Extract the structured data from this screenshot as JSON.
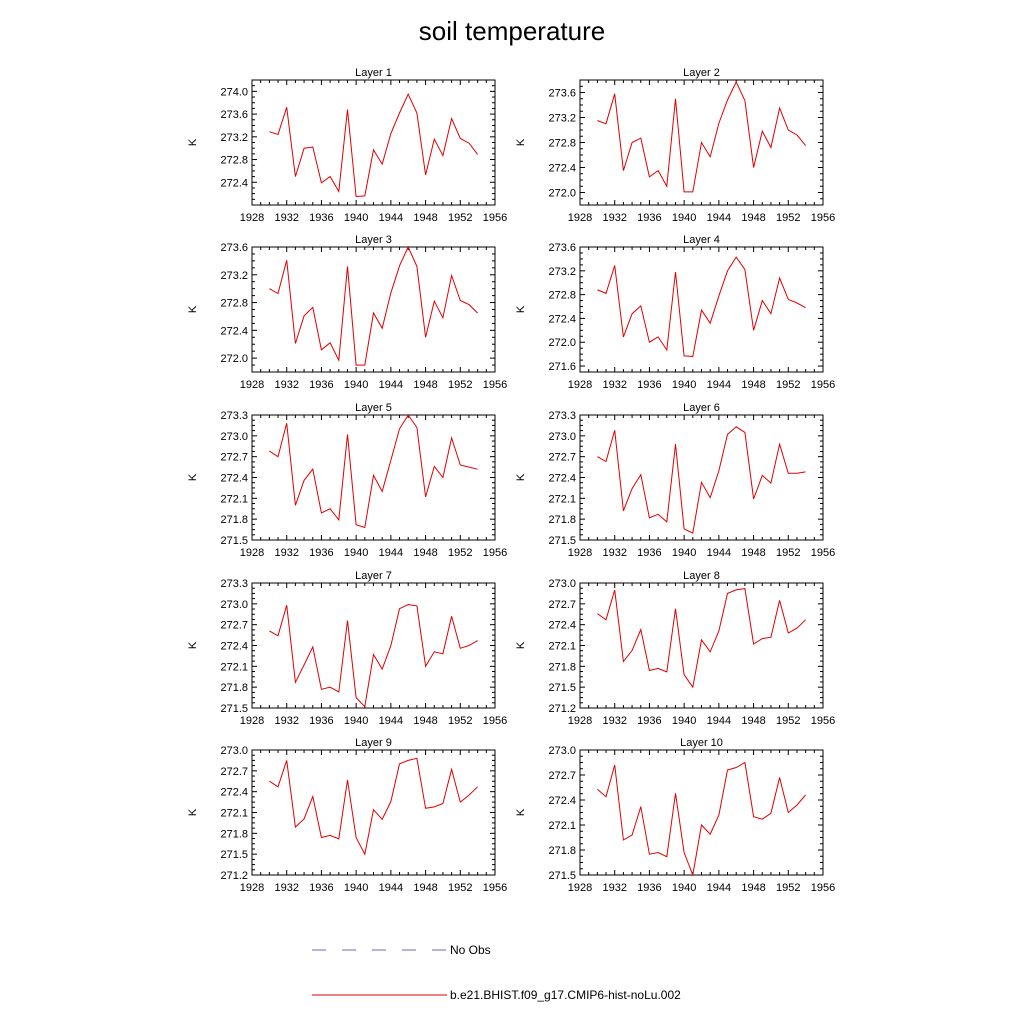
{
  "title": "soil temperature",
  "legend": [
    {
      "name": "No Obs",
      "color": "#6a6ac8",
      "dash": true
    },
    {
      "name": "b.e21.BHIST.f09_g17.CMIP6-hist-noLu.002",
      "color": "#e00000",
      "dash": false
    }
  ],
  "chart_data": [
    {
      "type": "line",
      "title": "Layer 1",
      "ylabel": "K",
      "x": [
        1930,
        1931,
        1932,
        1933,
        1934,
        1935,
        1936,
        1937,
        1938,
        1939,
        1940,
        1941,
        1942,
        1943,
        1944,
        1945,
        1946,
        1947,
        1948,
        1949,
        1950,
        1951,
        1952,
        1953,
        1954
      ],
      "series": [
        {
          "values": [
            273.29,
            273.24,
            273.72,
            272.5,
            273.0,
            273.02,
            272.39,
            272.5,
            272.24,
            273.68,
            272.15,
            272.16,
            272.97,
            272.72,
            273.26,
            273.62,
            273.95,
            273.62,
            272.53,
            273.16,
            272.87,
            273.52,
            273.17,
            273.09,
            272.89
          ]
        }
      ],
      "xlim": [
        1928,
        1956
      ],
      "ylim": [
        272.0,
        274.2
      ],
      "xticks": [
        "1928",
        "1932",
        "1936",
        "1940",
        "1944",
        "1948",
        "1952",
        "1956"
      ],
      "yticks": [
        "272.4",
        "272.8",
        "273.2",
        "273.6",
        "274.0"
      ]
    },
    {
      "type": "line",
      "title": "Layer 2",
      "ylabel": "K",
      "x": [
        1930,
        1931,
        1932,
        1933,
        1934,
        1935,
        1936,
        1937,
        1938,
        1939,
        1940,
        1941,
        1942,
        1943,
        1944,
        1945,
        1946,
        1947,
        1948,
        1949,
        1950,
        1951,
        1952,
        1953,
        1954
      ],
      "series": [
        {
          "values": [
            273.15,
            273.1,
            273.58,
            272.35,
            272.8,
            272.87,
            272.25,
            272.35,
            272.1,
            273.5,
            272.01,
            272.01,
            272.8,
            272.57,
            273.11,
            273.48,
            273.77,
            273.47,
            272.4,
            272.98,
            272.72,
            273.35,
            273.0,
            272.92,
            272.75
          ]
        }
      ],
      "xlim": [
        1928,
        1956
      ],
      "ylim": [
        271.8,
        273.8
      ],
      "xticks": [
        "1928",
        "1932",
        "1936",
        "1940",
        "1944",
        "1948",
        "1952",
        "1956"
      ],
      "yticks": [
        "272.0",
        "272.4",
        "272.8",
        "273.2",
        "273.6"
      ]
    },
    {
      "type": "line",
      "title": "Layer 3",
      "ylabel": "K",
      "x": [
        1930,
        1931,
        1932,
        1933,
        1934,
        1935,
        1936,
        1937,
        1938,
        1939,
        1940,
        1941,
        1942,
        1943,
        1944,
        1945,
        1946,
        1947,
        1948,
        1949,
        1950,
        1951,
        1952,
        1953,
        1954
      ],
      "series": [
        {
          "values": [
            273.0,
            272.93,
            273.41,
            272.21,
            272.61,
            272.73,
            272.12,
            272.22,
            271.97,
            273.32,
            271.9,
            271.9,
            272.65,
            272.43,
            272.94,
            273.33,
            273.6,
            273.32,
            272.3,
            272.82,
            272.58,
            273.19,
            272.83,
            272.77,
            272.65
          ]
        }
      ],
      "xlim": [
        1928,
        1956
      ],
      "ylim": [
        271.8,
        273.6
      ],
      "xticks": [
        "1928",
        "1932",
        "1936",
        "1940",
        "1944",
        "1948",
        "1952",
        "1956"
      ],
      "yticks": [
        "272.0",
        "272.4",
        "272.8",
        "273.2",
        "273.6"
      ]
    },
    {
      "type": "line",
      "title": "Layer 4",
      "ylabel": "K",
      "x": [
        1930,
        1931,
        1932,
        1933,
        1934,
        1935,
        1936,
        1937,
        1938,
        1939,
        1940,
        1941,
        1942,
        1943,
        1944,
        1945,
        1946,
        1947,
        1948,
        1949,
        1950,
        1951,
        1952,
        1953,
        1954
      ],
      "series": [
        {
          "values": [
            272.88,
            272.82,
            273.29,
            272.09,
            272.48,
            272.61,
            272.0,
            272.09,
            271.87,
            273.18,
            271.77,
            271.76,
            272.54,
            272.32,
            272.78,
            273.2,
            273.43,
            273.22,
            272.2,
            272.7,
            272.48,
            273.08,
            272.72,
            272.66,
            272.58
          ]
        }
      ],
      "xlim": [
        1928,
        1956
      ],
      "ylim": [
        271.5,
        273.6
      ],
      "xticks": [
        "1928",
        "1932",
        "1936",
        "1940",
        "1944",
        "1948",
        "1952",
        "1956"
      ],
      "yticks": [
        "271.6",
        "272.0",
        "272.4",
        "272.8",
        "273.2",
        "273.6"
      ]
    },
    {
      "type": "line",
      "title": "Layer 5",
      "ylabel": "K",
      "x": [
        1930,
        1931,
        1932,
        1933,
        1934,
        1935,
        1936,
        1937,
        1938,
        1939,
        1940,
        1941,
        1942,
        1943,
        1944,
        1945,
        1946,
        1947,
        1948,
        1949,
        1950,
        1951,
        1952,
        1953,
        1954
      ],
      "series": [
        {
          "values": [
            272.78,
            272.7,
            273.18,
            272.0,
            272.36,
            272.52,
            271.89,
            271.95,
            271.79,
            273.02,
            271.72,
            271.68,
            272.43,
            272.2,
            272.65,
            273.1,
            273.3,
            273.12,
            272.12,
            272.56,
            272.4,
            272.97,
            272.58,
            272.55,
            272.52
          ]
        }
      ],
      "xlim": [
        1928,
        1956
      ],
      "ylim": [
        271.5,
        273.3
      ],
      "xticks": [
        "1928",
        "1932",
        "1936",
        "1940",
        "1944",
        "1948",
        "1952",
        "1956"
      ],
      "yticks": [
        "271.5",
        "271.8",
        "272.1",
        "272.4",
        "272.7",
        "273.0",
        "273.3"
      ]
    },
    {
      "type": "line",
      "title": "Layer 6",
      "ylabel": "K",
      "x": [
        1930,
        1931,
        1932,
        1933,
        1934,
        1935,
        1936,
        1937,
        1938,
        1939,
        1940,
        1941,
        1942,
        1943,
        1944,
        1945,
        1946,
        1947,
        1948,
        1949,
        1950,
        1951,
        1952,
        1953,
        1954
      ],
      "series": [
        {
          "values": [
            272.7,
            272.63,
            273.08,
            271.92,
            272.24,
            272.44,
            271.82,
            271.87,
            271.76,
            272.88,
            271.66,
            271.6,
            272.33,
            272.11,
            272.5,
            273.02,
            273.13,
            273.05,
            272.09,
            272.43,
            272.32,
            272.88,
            272.46,
            272.46,
            272.48
          ]
        }
      ],
      "xlim": [
        1928,
        1956
      ],
      "ylim": [
        271.5,
        273.3
      ],
      "xticks": [
        "1928",
        "1932",
        "1936",
        "1940",
        "1944",
        "1948",
        "1952",
        "1956"
      ],
      "yticks": [
        "271.5",
        "271.8",
        "272.1",
        "272.4",
        "272.7",
        "273.0",
        "273.3"
      ]
    },
    {
      "type": "line",
      "title": "Layer 7",
      "ylabel": "K",
      "x": [
        1930,
        1931,
        1932,
        1933,
        1934,
        1935,
        1936,
        1937,
        1938,
        1939,
        1940,
        1941,
        1942,
        1943,
        1944,
        1945,
        1946,
        1947,
        1948,
        1949,
        1950,
        1951,
        1952,
        1953,
        1954
      ],
      "series": [
        {
          "values": [
            272.61,
            272.54,
            272.98,
            271.87,
            272.12,
            272.38,
            271.77,
            271.8,
            271.73,
            272.76,
            271.65,
            271.52,
            272.27,
            272.06,
            272.4,
            272.93,
            272.99,
            272.97,
            272.1,
            272.31,
            272.28,
            272.82,
            272.36,
            272.4,
            272.47
          ]
        }
      ],
      "xlim": [
        1928,
        1956
      ],
      "ylim": [
        271.5,
        273.3
      ],
      "xticks": [
        "1928",
        "1932",
        "1936",
        "1940",
        "1944",
        "1948",
        "1952",
        "1956"
      ],
      "yticks": [
        "271.5",
        "271.8",
        "272.1",
        "272.4",
        "272.7",
        "273.0",
        "273.3"
      ]
    },
    {
      "type": "line",
      "title": "Layer 8",
      "ylabel": "K",
      "x": [
        1930,
        1931,
        1932,
        1933,
        1934,
        1935,
        1936,
        1937,
        1938,
        1939,
        1940,
        1941,
        1942,
        1943,
        1944,
        1945,
        1946,
        1947,
        1948,
        1949,
        1950,
        1951,
        1952,
        1953,
        1954
      ],
      "series": [
        {
          "values": [
            272.56,
            272.47,
            272.9,
            271.87,
            272.03,
            272.33,
            271.74,
            271.77,
            271.72,
            272.63,
            271.68,
            271.5,
            272.18,
            272.01,
            272.31,
            272.85,
            272.9,
            272.92,
            272.12,
            272.2,
            272.22,
            272.75,
            272.28,
            272.35,
            272.47
          ]
        }
      ],
      "xlim": [
        1928,
        1956
      ],
      "ylim": [
        271.2,
        273.0
      ],
      "xticks": [
        "1928",
        "1932",
        "1936",
        "1940",
        "1944",
        "1948",
        "1952",
        "1956"
      ],
      "yticks": [
        "271.2",
        "271.5",
        "271.8",
        "272.1",
        "272.4",
        "272.7",
        "273.0"
      ]
    },
    {
      "type": "line",
      "title": "Layer 9",
      "ylabel": "K",
      "x": [
        1930,
        1931,
        1932,
        1933,
        1934,
        1935,
        1936,
        1937,
        1938,
        1939,
        1940,
        1941,
        1942,
        1943,
        1944,
        1945,
        1946,
        1947,
        1948,
        1949,
        1950,
        1951,
        1952,
        1953,
        1954
      ],
      "series": [
        {
          "values": [
            272.55,
            272.47,
            272.85,
            271.89,
            272.01,
            272.33,
            271.74,
            271.77,
            271.72,
            272.57,
            271.74,
            271.5,
            272.14,
            272.0,
            272.26,
            272.8,
            272.85,
            272.88,
            272.16,
            272.18,
            272.23,
            272.72,
            272.25,
            272.35,
            272.47
          ]
        }
      ],
      "xlim": [
        1928,
        1956
      ],
      "ylim": [
        271.2,
        273.0
      ],
      "xticks": [
        "1928",
        "1932",
        "1936",
        "1940",
        "1944",
        "1948",
        "1952",
        "1956"
      ],
      "yticks": [
        "271.2",
        "271.5",
        "271.8",
        "272.1",
        "272.4",
        "272.7",
        "273.0"
      ]
    },
    {
      "type": "line",
      "title": "Layer 10",
      "ylabel": "K",
      "x": [
        1930,
        1931,
        1932,
        1933,
        1934,
        1935,
        1936,
        1937,
        1938,
        1939,
        1940,
        1941,
        1942,
        1943,
        1944,
        1945,
        1946,
        1947,
        1948,
        1949,
        1950,
        1951,
        1952,
        1953,
        1954
      ],
      "series": [
        {
          "values": [
            272.53,
            272.44,
            272.82,
            271.92,
            271.98,
            272.32,
            271.75,
            271.77,
            271.72,
            272.48,
            271.77,
            271.5,
            272.1,
            271.99,
            272.22,
            272.76,
            272.79,
            272.85,
            272.2,
            272.17,
            272.24,
            272.67,
            272.25,
            272.34,
            272.46
          ]
        }
      ],
      "xlim": [
        1928,
        1956
      ],
      "ylim": [
        271.5,
        273.0
      ],
      "xticks": [
        "1928",
        "1932",
        "1936",
        "1940",
        "1944",
        "1948",
        "1952",
        "1956"
      ],
      "yticks": [
        "271.5",
        "271.8",
        "272.1",
        "272.4",
        "272.7",
        "273.0"
      ]
    }
  ]
}
